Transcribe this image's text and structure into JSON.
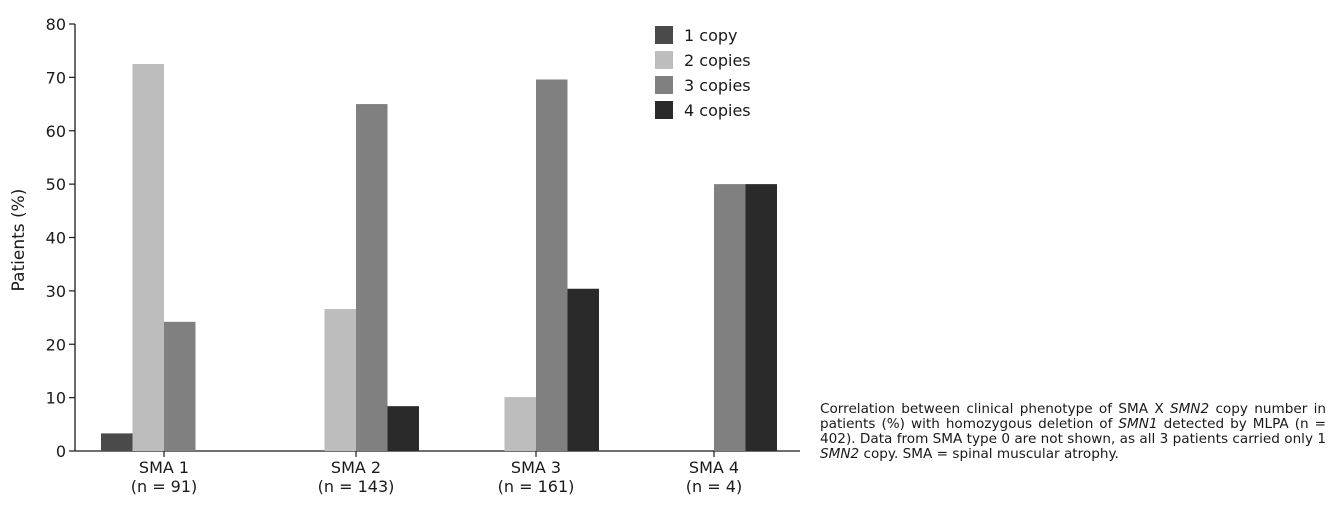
{
  "chart_data": {
    "type": "bar",
    "title": "",
    "xlabel": "",
    "ylabel": "Patients (%)",
    "ylim": [
      0,
      80
    ],
    "yticks": [
      0,
      10,
      20,
      30,
      40,
      50,
      60,
      70,
      80
    ],
    "grid": false,
    "legend_position": "top-right",
    "categories": [
      "SMA 1",
      "SMA 2",
      "SMA 3",
      "SMA 4"
    ],
    "category_sublabels": [
      "(n = 91)",
      "(n = 143)",
      "(n = 161)",
      "(n = 4)"
    ],
    "series": [
      {
        "name": "1 copy",
        "color": "#4a4a4a",
        "values": [
          3.3,
          0,
          0,
          0
        ]
      },
      {
        "name": "2 copies",
        "color": "#bdbdbd",
        "values": [
          72.5,
          26.6,
          10.1,
          0
        ]
      },
      {
        "name": "3 copies",
        "color": "#808080",
        "values": [
          24.2,
          65.0,
          69.6,
          50
        ]
      },
      {
        "name": "4 copies",
        "color": "#2a2a2a",
        "values": [
          0,
          8.4,
          30.4,
          50
        ]
      }
    ]
  },
  "caption": {
    "parts": [
      {
        "text": "Correlation between clinical phenotype of SMA X ",
        "italic": false
      },
      {
        "text": "SMN2",
        "italic": true
      },
      {
        "text": " copy number in patients (%) with homozygous deletion of ",
        "italic": false
      },
      {
        "text": "SMN1",
        "italic": true
      },
      {
        "text": " detected by MLPA (n = 402). Data from SMA type 0 are not shown, as all 3 patients carried only 1 ",
        "italic": false
      },
      {
        "text": "SMN2",
        "italic": true
      },
      {
        "text": " copy. SMA = spinal muscular atrophy.",
        "italic": false
      }
    ]
  }
}
